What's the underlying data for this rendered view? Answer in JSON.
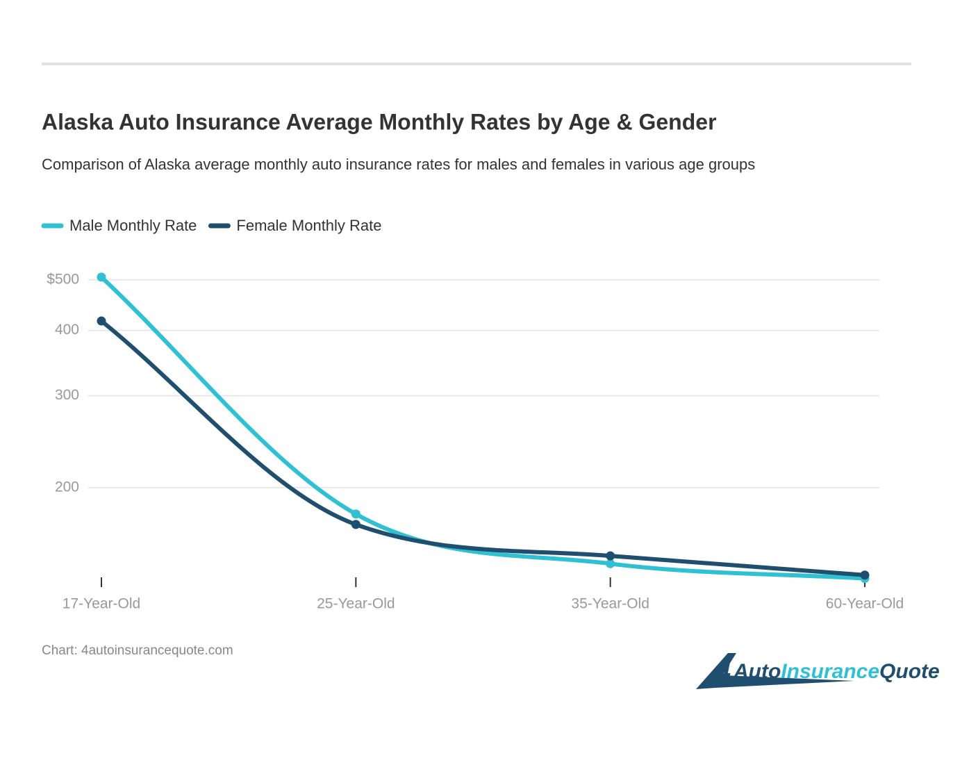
{
  "chart_data": {
    "type": "line",
    "title": "Alaska Auto Insurance Average Monthly Rates by Age & Gender",
    "subtitle": "Comparison of Alaska average monthly auto insurance rates for males and females in various age groups",
    "categories": [
      "17-Year-Old",
      "25-Year-Old",
      "35-Year-Old",
      "60-Year-Old"
    ],
    "series": [
      {
        "name": "Male Monthly Rate",
        "color": "#2fc1d3",
        "values": [
          506,
          178,
          143,
          134
        ]
      },
      {
        "name": "Female Monthly Rate",
        "color": "#1f4e6f",
        "values": [
          417,
          170,
          148,
          136
        ]
      }
    ],
    "ylim": [
      133,
      520
    ],
    "yticks": [
      200,
      300,
      400,
      {
        "value": 500,
        "label": "$500"
      }
    ],
    "log_scale": true,
    "grid": true,
    "legend": "top-left",
    "source": "Chart: 4autoinsurancequote.com",
    "logo": {
      "digit": "4",
      "part1": "Auto",
      "part2": "Insurance",
      "part3": "Quote"
    }
  }
}
